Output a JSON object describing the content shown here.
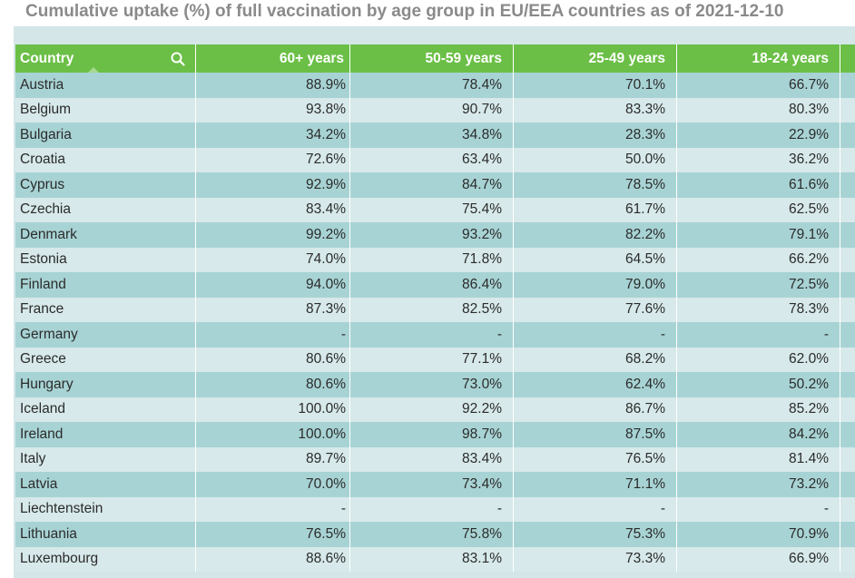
{
  "title": "Cumulative uptake (%) of full vaccination by age group in EU/EEA countries as of 2021-12-10",
  "table": {
    "columns": [
      "Country",
      "60+ years",
      "50-59 years",
      "25-49 years",
      "18-24 years"
    ],
    "rows": [
      [
        "Austria",
        "88.9%",
        "78.4%",
        "70.1%",
        "66.7%"
      ],
      [
        "Belgium",
        "93.8%",
        "90.7%",
        "83.3%",
        "80.3%"
      ],
      [
        "Bulgaria",
        "34.2%",
        "34.8%",
        "28.3%",
        "22.9%"
      ],
      [
        "Croatia",
        "72.6%",
        "63.4%",
        "50.0%",
        "36.2%"
      ],
      [
        "Cyprus",
        "92.9%",
        "84.7%",
        "78.5%",
        "61.6%"
      ],
      [
        "Czechia",
        "83.4%",
        "75.4%",
        "61.7%",
        "62.5%"
      ],
      [
        "Denmark",
        "99.2%",
        "93.2%",
        "82.2%",
        "79.1%"
      ],
      [
        "Estonia",
        "74.0%",
        "71.8%",
        "64.5%",
        "66.2%"
      ],
      [
        "Finland",
        "94.0%",
        "86.4%",
        "79.0%",
        "72.5%"
      ],
      [
        "France",
        "87.3%",
        "82.5%",
        "77.6%",
        "78.3%"
      ],
      [
        "Germany",
        "-",
        "-",
        "-",
        "-"
      ],
      [
        "Greece",
        "80.6%",
        "77.1%",
        "68.2%",
        "62.0%"
      ],
      [
        "Hungary",
        "80.6%",
        "73.0%",
        "62.4%",
        "50.2%"
      ],
      [
        "Iceland",
        "100.0%",
        "92.2%",
        "86.7%",
        "85.2%"
      ],
      [
        "Ireland",
        "100.0%",
        "98.7%",
        "87.5%",
        "84.2%"
      ],
      [
        "Italy",
        "89.7%",
        "83.4%",
        "76.5%",
        "81.4%"
      ],
      [
        "Latvia",
        "70.0%",
        "73.4%",
        "71.1%",
        "73.2%"
      ],
      [
        "Liechtenstein",
        "-",
        "-",
        "-",
        "-"
      ],
      [
        "Lithuania",
        "76.5%",
        "75.8%",
        "75.3%",
        "70.9%"
      ],
      [
        "Luxembourg",
        "88.6%",
        "83.1%",
        "73.3%",
        "66.9%"
      ]
    ]
  },
  "icons": {
    "search": "search-icon",
    "sort": "sort-up-icon"
  },
  "colors": {
    "header": "#6bbf46",
    "row_odd": "#a8d3d4",
    "row_even": "#d7e9ea",
    "title": "#8a8a8a"
  }
}
